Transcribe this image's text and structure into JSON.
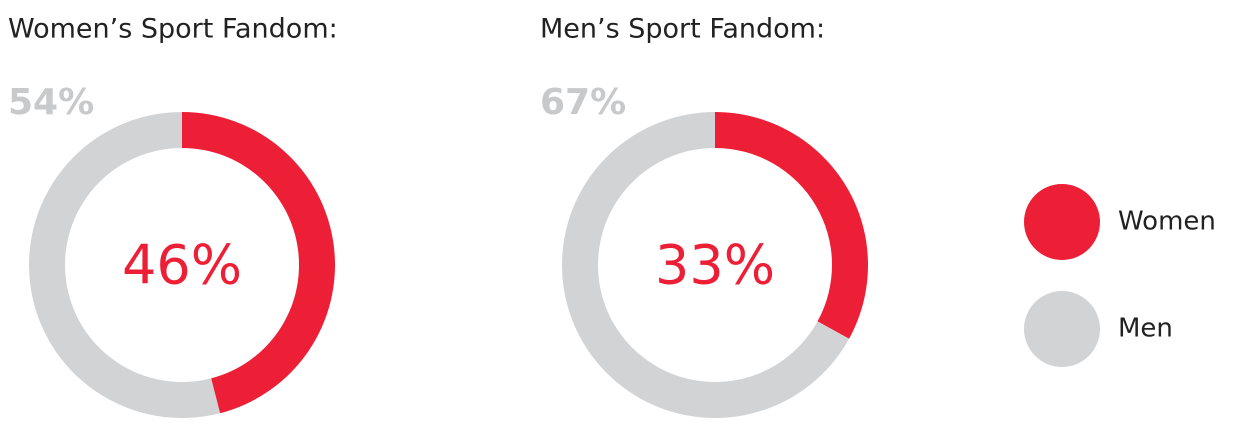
{
  "chart_data": [
    {
      "type": "donut",
      "title": "Women’s Sport Fandom:",
      "values": [
        46,
        54
      ],
      "value_labels": [
        "46%",
        "54%"
      ]
    },
    {
      "type": "donut",
      "title": "Men’s Sport Fandom:",
      "values": [
        33,
        67
      ],
      "value_labels": [
        "33%",
        "67%"
      ]
    }
  ],
  "legend": {
    "items": [
      {
        "name": "Women",
        "color": "#ed1f36"
      },
      {
        "name": "Men",
        "color": "#d2d3d5"
      }
    ]
  }
}
